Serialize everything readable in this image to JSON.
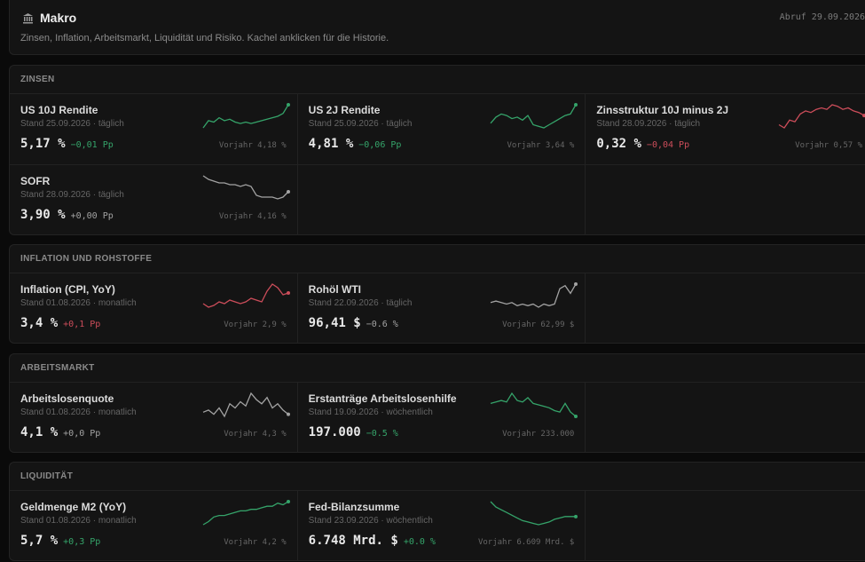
{
  "header": {
    "title": "Makro",
    "subtitle": "Zinsen, Inflation, Arbeitsmarkt, Liquidität und Risiko. Kachel anklicken für die Historie.",
    "fetched": "Abruf 29.09.2026",
    "icon": "bank-icon"
  },
  "colors": {
    "green": "#35a46a",
    "red": "#cc4d5a",
    "gray": "#a3a3a3"
  },
  "sections": [
    {
      "title": "ZINSEN",
      "tiles": [
        {
          "name": "US 10J Rendite",
          "sub": "Stand 25.09.2026 · täglich",
          "value": "5,17 %",
          "change": "−0,01 Pp",
          "trend": "green",
          "prev": "Vorjahr 4,18 %",
          "spark": [
            3,
            8,
            7,
            10,
            8,
            9,
            7,
            6,
            7,
            6,
            7,
            8,
            9,
            10,
            11,
            13,
            19
          ]
        },
        {
          "name": "US 2J Rendite",
          "sub": "Stand 25.09.2026 · täglich",
          "value": "4,81 %",
          "change": "−0,06 Pp",
          "trend": "green",
          "prev": "Vorjahr 3,64 %",
          "spark": [
            6,
            10,
            12,
            11,
            9,
            10,
            8,
            11,
            5,
            4,
            3,
            5,
            7,
            9,
            11,
            12,
            18
          ]
        },
        {
          "name": "Zinsstruktur 10J minus 2J",
          "sub": "Stand 28.09.2026 · täglich",
          "value": "0,32 %",
          "change": "−0,04 Pp",
          "trend": "red",
          "prev": "Vorjahr 0,57 %",
          "spark": [
            5,
            3,
            8,
            7,
            12,
            14,
            13,
            15,
            16,
            15,
            18,
            17,
            15,
            16,
            14,
            13,
            11
          ]
        },
        {
          "name": "SOFR",
          "sub": "Stand 28.09.2026 · täglich",
          "value": "3,90 %",
          "change": "+0,00 Pp",
          "trend": "gray",
          "prev": "Vorjahr 4,16 %",
          "spark": [
            20,
            18,
            17,
            16,
            16,
            15,
            15,
            14,
            15,
            14,
            9,
            8,
            8,
            8,
            7,
            8,
            11
          ]
        }
      ]
    },
    {
      "title": "INFLATION UND ROHSTOFFE",
      "tiles": [
        {
          "name": "Inflation (CPI, YoY)",
          "sub": "Stand 01.08.2026 · monatlich",
          "value": "3,4 %",
          "change": "+0,1 Pp",
          "trend": "red",
          "prev": "Vorjahr 2,9 %",
          "spark": [
            7,
            5,
            6,
            8,
            7,
            9,
            8,
            7,
            8,
            10,
            9,
            8,
            14,
            18,
            16,
            12,
            13
          ]
        },
        {
          "name": "Rohöl WTI",
          "sub": "Stand 22.09.2026 · täglich",
          "value": "96,41 $",
          "change": "−0.6 %",
          "trend": "gray",
          "prev": "Vorjahr 62,99 $",
          "spark": [
            6,
            7,
            6,
            5,
            6,
            4,
            5,
            4,
            5,
            3,
            5,
            4,
            5,
            15,
            17,
            12,
            18
          ]
        }
      ]
    },
    {
      "title": "ARBEITSMARKT",
      "tiles": [
        {
          "name": "Arbeitslosenquote",
          "sub": "Stand 01.08.2026 · monatlich",
          "value": "4,1 %",
          "change": "+0,0 Pp",
          "trend": "gray",
          "prev": "Vorjahr 4,3 %",
          "spark": [
            8,
            9,
            7,
            10,
            6,
            12,
            10,
            13,
            11,
            17,
            14,
            12,
            15,
            10,
            12,
            9,
            7
          ]
        },
        {
          "name": "Erstanträge Arbeitslosenhilfe",
          "sub": "Stand 19.09.2026 · wöchentlich",
          "value": "197.000",
          "change": "−0.5 %",
          "trend": "green",
          "prev": "Vorjahr 233.000",
          "spark": [
            12,
            13,
            14,
            13,
            19,
            14,
            13,
            16,
            12,
            11,
            10,
            9,
            7,
            6,
            12,
            6,
            3
          ]
        }
      ]
    },
    {
      "title": "LIQUIDITÄT",
      "tiles": [
        {
          "name": "Geldmenge M2 (YoY)",
          "sub": "Stand 01.08.2026 · monatlich",
          "value": "5,7 %",
          "change": "+0,3 Pp",
          "trend": "green",
          "prev": "Vorjahr 4,2 %",
          "spark": [
            2,
            4,
            7,
            8,
            8,
            9,
            10,
            11,
            11,
            12,
            12,
            13,
            14,
            14,
            16,
            15,
            17
          ]
        },
        {
          "name": "Fed-Bilanzsumme",
          "sub": "Stand 23.09.2026 · wöchentlich",
          "value": "6.748 Mrd. $",
          "change": "+0.0 %",
          "trend": "green",
          "prev": "Vorjahr 6.609 Mrd. $",
          "spark": [
            20,
            16,
            14,
            12,
            10,
            8,
            6,
            5,
            4,
            3,
            4,
            5,
            7,
            8,
            9,
            9,
            9
          ]
        }
      ]
    }
  ]
}
